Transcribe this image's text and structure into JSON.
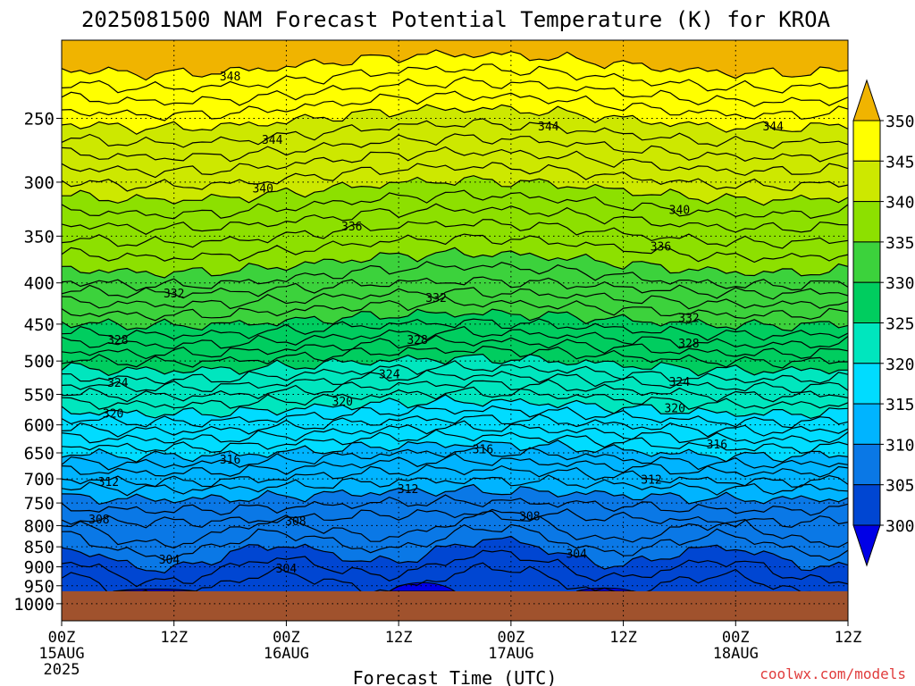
{
  "chart_data": {
    "type": "heatmap",
    "title": "2025081500 NAM Forecast Potential Temperature (K) for KROA",
    "xlabel": "Forecast Time (UTC)",
    "ylabel": "",
    "credit": "coolwx.com/models",
    "x_ticks": [
      {
        "hour": 0,
        "label": "00Z",
        "sub": "15AUG",
        "sub2": "2025"
      },
      {
        "hour": 12,
        "label": "12Z",
        "sub": "",
        "sub2": ""
      },
      {
        "hour": 24,
        "label": "00Z",
        "sub": "16AUG",
        "sub2": ""
      },
      {
        "hour": 36,
        "label": "12Z",
        "sub": "",
        "sub2": ""
      },
      {
        "hour": 48,
        "label": "00Z",
        "sub": "17AUG",
        "sub2": ""
      },
      {
        "hour": 60,
        "label": "12Z",
        "sub": "",
        "sub2": ""
      },
      {
        "hour": 72,
        "label": "00Z",
        "sub": "18AUG",
        "sub2": ""
      },
      {
        "hour": 84,
        "label": "12Z",
        "sub": "",
        "sub2": ""
      }
    ],
    "xlim": [
      0,
      84
    ],
    "y_ticks": [
      250,
      300,
      350,
      400,
      450,
      500,
      550,
      600,
      650,
      700,
      750,
      800,
      850,
      900,
      950,
      1000
    ],
    "ylim": [
      1050,
      200
    ],
    "y_scale": "log (pressure, hPa)",
    "surface_pressure": 965,
    "grid": true,
    "colorbar": {
      "labels": [
        350,
        345,
        340,
        335,
        330,
        325,
        320,
        315,
        310,
        305,
        300
      ],
      "colors": [
        "#f0b400",
        "#ffff00",
        "#cde800",
        "#8de000",
        "#3cd23c",
        "#00cd5f",
        "#00e6be",
        "#00dcff",
        "#00b4ff",
        "#0a78e6",
        "#0046d2",
        "#0000e6"
      ],
      "terrain_color": "#a0522d"
    },
    "isentrope_levels": [
      {
        "theta": 303.3,
        "p": 940
      },
      {
        "theta": 304,
        "p": 902,
        "label": "304"
      },
      {
        "theta": 305,
        "p": 868
      },
      {
        "theta": 306,
        "p": 838
      },
      {
        "theta": 307,
        "p": 810
      },
      {
        "theta": 308,
        "p": 782,
        "label": "308"
      },
      {
        "theta": 309,
        "p": 756
      },
      {
        "theta": 310,
        "p": 733
      },
      {
        "theta": 311,
        "p": 712
      },
      {
        "theta": 312,
        "p": 694,
        "label": "312"
      },
      {
        "theta": 313,
        "p": 676
      },
      {
        "theta": 314,
        "p": 660
      },
      {
        "theta": 315,
        "p": 645
      },
      {
        "theta": 316,
        "p": 630,
        "label": "316"
      },
      {
        "theta": 317,
        "p": 615
      },
      {
        "theta": 318,
        "p": 600
      },
      {
        "theta": 319,
        "p": 585
      },
      {
        "theta": 320,
        "p": 571,
        "label": "320"
      },
      {
        "theta": 321,
        "p": 557
      },
      {
        "theta": 322,
        "p": 543
      },
      {
        "theta": 323,
        "p": 530
      },
      {
        "theta": 324,
        "p": 518,
        "label": "324"
      },
      {
        "theta": 325,
        "p": 505
      },
      {
        "theta": 326,
        "p": 493
      },
      {
        "theta": 327,
        "p": 481
      },
      {
        "theta": 328,
        "p": 469,
        "label": "328"
      },
      {
        "theta": 329,
        "p": 456
      },
      {
        "theta": 330,
        "p": 444
      },
      {
        "theta": 331,
        "p": 431
      },
      {
        "theta": 332,
        "p": 418,
        "label": "332"
      },
      {
        "theta": 333,
        "p": 405
      },
      {
        "theta": 334,
        "p": 392
      },
      {
        "theta": 335,
        "p": 378
      },
      {
        "theta": 336,
        "p": 362,
        "label": "336"
      },
      {
        "theta": 337,
        "p": 347
      },
      {
        "theta": 338,
        "p": 333
      },
      {
        "theta": 339,
        "p": 320
      },
      {
        "theta": 340,
        "p": 307,
        "label": "340"
      },
      {
        "theta": 341,
        "p": 295
      },
      {
        "theta": 342,
        "p": 283
      },
      {
        "theta": 343,
        "p": 272
      },
      {
        "theta": 344,
        "p": 261,
        "label": "344"
      },
      {
        "theta": 345,
        "p": 250
      },
      {
        "theta": 346,
        "p": 241
      },
      {
        "theta": 347,
        "p": 232
      },
      {
        "theta": 348,
        "p": 223,
        "label": "348"
      },
      {
        "theta": 349,
        "p": 214
      }
    ],
    "contour_labels": [
      {
        "text": "348",
        "hour": 18,
        "p": 222
      },
      {
        "text": "344",
        "hour": 22.5,
        "p": 266
      },
      {
        "text": "344",
        "hour": 52,
        "p": 256
      },
      {
        "text": "344",
        "hour": 76,
        "p": 256
      },
      {
        "text": "340",
        "hour": 21.5,
        "p": 306
      },
      {
        "text": "340",
        "hour": 66,
        "p": 325
      },
      {
        "text": "336",
        "hour": 31,
        "p": 341
      },
      {
        "text": "336",
        "hour": 64,
        "p": 361
      },
      {
        "text": "332",
        "hour": 12,
        "p": 413
      },
      {
        "text": "332",
        "hour": 40,
        "p": 418
      },
      {
        "text": "332",
        "hour": 67,
        "p": 443
      },
      {
        "text": "328",
        "hour": 6,
        "p": 471
      },
      {
        "text": "328",
        "hour": 38,
        "p": 471
      },
      {
        "text": "328",
        "hour": 67,
        "p": 476
      },
      {
        "text": "324",
        "hour": 6,
        "p": 533
      },
      {
        "text": "324",
        "hour": 35,
        "p": 520
      },
      {
        "text": "324",
        "hour": 66,
        "p": 531
      },
      {
        "text": "320",
        "hour": 5.5,
        "p": 582
      },
      {
        "text": "320",
        "hour": 30,
        "p": 562
      },
      {
        "text": "320",
        "hour": 65.5,
        "p": 573
      },
      {
        "text": "316",
        "hour": 18,
        "p": 663
      },
      {
        "text": "316",
        "hour": 45,
        "p": 644
      },
      {
        "text": "316",
        "hour": 70,
        "p": 635
      },
      {
        "text": "312",
        "hour": 5,
        "p": 707
      },
      {
        "text": "312",
        "hour": 37,
        "p": 722
      },
      {
        "text": "312",
        "hour": 63,
        "p": 703
      },
      {
        "text": "308",
        "hour": 4,
        "p": 787
      },
      {
        "text": "308",
        "hour": 25,
        "p": 791
      },
      {
        "text": "308",
        "hour": 50,
        "p": 780
      },
      {
        "text": "304",
        "hour": 11.5,
        "p": 883
      },
      {
        "text": "304",
        "hour": 24,
        "p": 906
      },
      {
        "text": "304",
        "hour": 55,
        "p": 868
      }
    ],
    "cold_pools": [
      {
        "hour_start": 5.5,
        "hour_end": 14.5,
        "p_top": 957
      },
      {
        "hour_start": 35,
        "hour_end": 42,
        "p_top": 934
      },
      {
        "hour_start": 55,
        "hour_end": 61,
        "p_top": 953
      }
    ]
  }
}
